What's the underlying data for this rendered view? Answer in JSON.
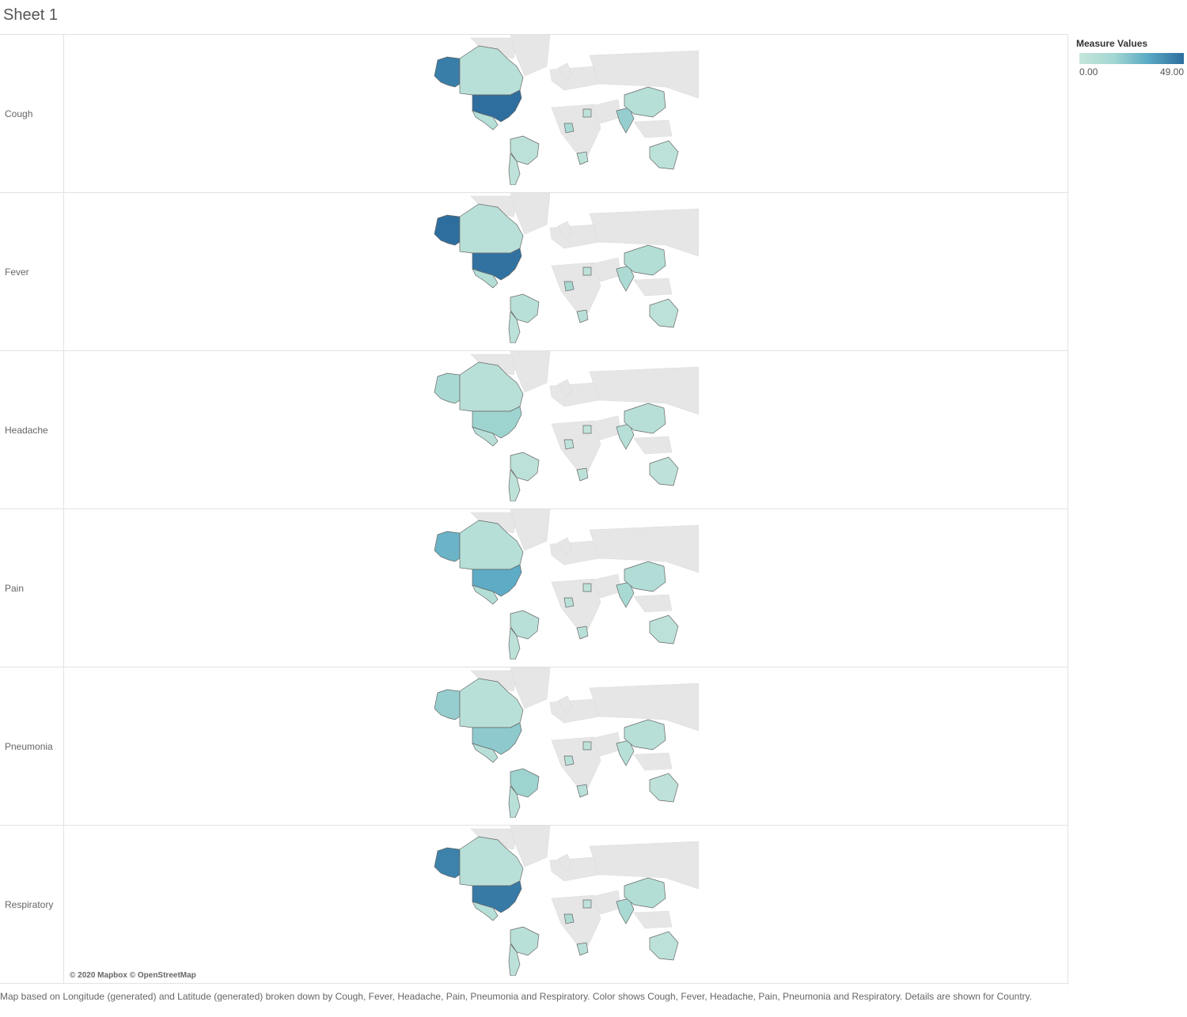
{
  "sheet": {
    "title": "Sheet 1"
  },
  "legend": {
    "title": "Measure Values",
    "min_label": "0.00",
    "max_label": "49.00",
    "min": 0,
    "max": 49
  },
  "map_data": {
    "type": "choropleth",
    "rows": [
      {
        "label": "Cough",
        "values": {
          "alaska": 45,
          "canada": 6,
          "usa": 49,
          "mexico": 8,
          "brazil": 5,
          "argentina": 4,
          "nigeria": 14,
          "south_africa": 5,
          "egypt": 4,
          "india": 20,
          "china": 8,
          "australia": 5
        }
      },
      {
        "label": "Fever",
        "values": {
          "alaska": 49,
          "canada": 6,
          "usa": 48,
          "mexico": 9,
          "brazil": 6,
          "argentina": 5,
          "nigeria": 15,
          "south_africa": 6,
          "egypt": 4,
          "india": 12,
          "china": 9,
          "australia": 5
        }
      },
      {
        "label": "Headache",
        "values": {
          "alaska": 14,
          "canada": 6,
          "usa": 18,
          "mexico": 7,
          "brazil": 5,
          "argentina": 4,
          "nigeria": 4,
          "south_africa": 5,
          "egypt": 3,
          "india": 8,
          "china": 7,
          "australia": 4
        }
      },
      {
        "label": "Pain",
        "values": {
          "alaska": 30,
          "canada": 8,
          "usa": 33,
          "mexico": 9,
          "brazil": 6,
          "argentina": 5,
          "nigeria": 6,
          "south_africa": 6,
          "egypt": 4,
          "india": 14,
          "china": 10,
          "australia": 5
        }
      },
      {
        "label": "Pneumonia",
        "values": {
          "alaska": 20,
          "canada": 6,
          "usa": 22,
          "mexico": 7,
          "brazil": 18,
          "argentina": 6,
          "nigeria": 6,
          "south_africa": 6,
          "egypt": 4,
          "india": 8,
          "china": 7,
          "australia": 4
        }
      },
      {
        "label": "Respiratory",
        "values": {
          "alaska": 44,
          "canada": 6,
          "usa": 46,
          "mexico": 8,
          "brazil": 6,
          "argentina": 5,
          "nigeria": 12,
          "south_africa": 6,
          "egypt": 4,
          "india": 14,
          "china": 9,
          "australia": 5
        }
      }
    ]
  },
  "attribution": "© 2020 Mapbox © OpenStreetMap",
  "caption": "Map based on Longitude (generated) and Latitude (generated) broken down by Cough, Fever, Headache, Pain, Pneumonia and Respiratory.  Color shows Cough, Fever, Headache, Pain, Pneumonia and Respiratory.  Details are shown for Country."
}
